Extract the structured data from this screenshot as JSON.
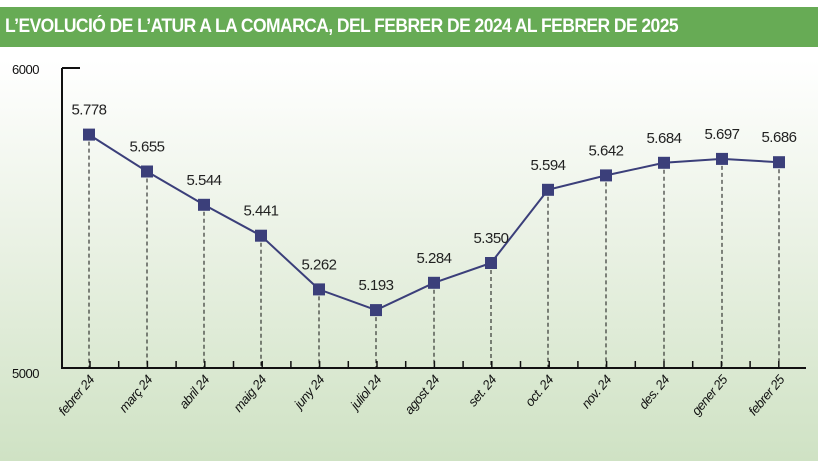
{
  "chart_data": {
    "type": "line",
    "title": "L’EVOLUCIÓ DE L’ATUR A LA COMARCA, DEL FEBRER DE 2024 AL FEBRER DE 2025",
    "categories": [
      "febrer 24",
      "març 24",
      "abril 24",
      "maig 24",
      "juny 24",
      "juliol 24",
      "agost 24",
      "set. 24",
      "oct. 24",
      "nov. 24",
      "des. 24",
      "gener 25",
      "febrer 25"
    ],
    "values": [
      5778,
      5655,
      5544,
      5441,
      5262,
      5193,
      5284,
      5350,
      5594,
      5642,
      5684,
      5697,
      5686
    ],
    "data_labels": [
      "5.778",
      "5.655",
      "5.544",
      "5.441",
      "5.262",
      "5.193",
      "5.284",
      "5.350",
      "5.594",
      "5.642",
      "5.684",
      "5.697",
      "5.686"
    ],
    "ylim": [
      5000,
      6000
    ],
    "yticks": [
      "5000",
      "6000"
    ],
    "xlabel": "",
    "ylabel": "",
    "grid": false,
    "colors": {
      "line": "#3b3f7a",
      "marker": "#3b3f7a",
      "title_bar": "#67ab55"
    }
  }
}
